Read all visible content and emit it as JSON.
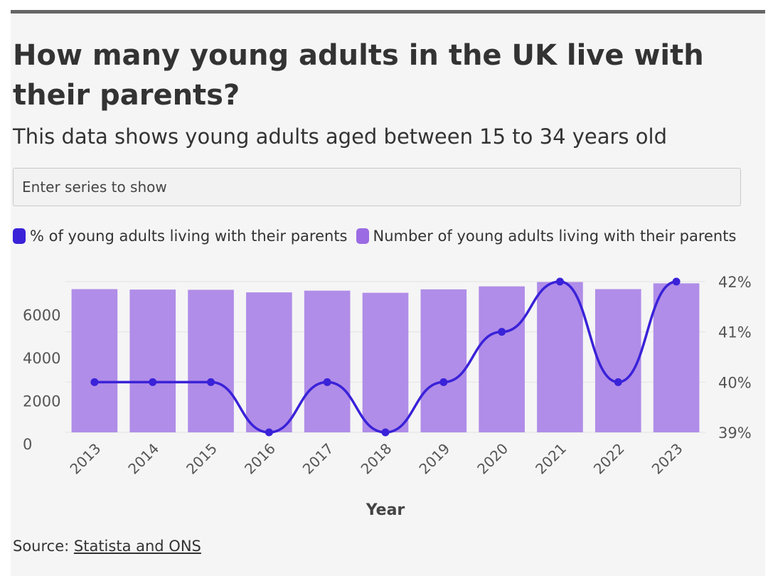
{
  "header": {
    "title": "How many young adults in the UK live with their parents?",
    "subtitle": "This data shows young adults aged between 15 to 34 years old"
  },
  "controls": {
    "series_placeholder": "Enter series to show"
  },
  "legend": [
    {
      "label": "% of young adults living with their parents",
      "color": "#3a22d8",
      "icon": "rounded-square"
    },
    {
      "label": "Number of young adults living with their parents",
      "color": "#9b6be3",
      "icon": "rounded-square"
    }
  ],
  "source": {
    "prefix": "Source: ",
    "link_text": "Statista and ONS"
  },
  "chart_data": {
    "type": "bar",
    "xlabel": "Year",
    "categories": [
      "2013",
      "2014",
      "2015",
      "2016",
      "2017",
      "2018",
      "2019",
      "2020",
      "2021",
      "2022",
      "2023"
    ],
    "y_left": {
      "ticks": [
        "0",
        "2000",
        "4000",
        "6000"
      ],
      "ylim": [
        0,
        7000
      ]
    },
    "y_right": {
      "ticks": [
        "39%",
        "40%",
        "41%",
        "42%"
      ],
      "ylim": [
        39,
        42
      ]
    },
    "grid": true,
    "legend_position": "top-left",
    "series": [
      {
        "name": "Number of young adults living with their parents",
        "type": "bar",
        "axis": "left",
        "color": "#b08de8",
        "values": [
          6650,
          6630,
          6620,
          6500,
          6580,
          6480,
          6640,
          6780,
          6980,
          6650,
          6920
        ]
      },
      {
        "name": "% of young adults living with their parents",
        "type": "line",
        "axis": "right",
        "color": "#3a22d8",
        "values": [
          40,
          40,
          40,
          39,
          40,
          39,
          40,
          41,
          42,
          40,
          42
        ]
      }
    ]
  }
}
